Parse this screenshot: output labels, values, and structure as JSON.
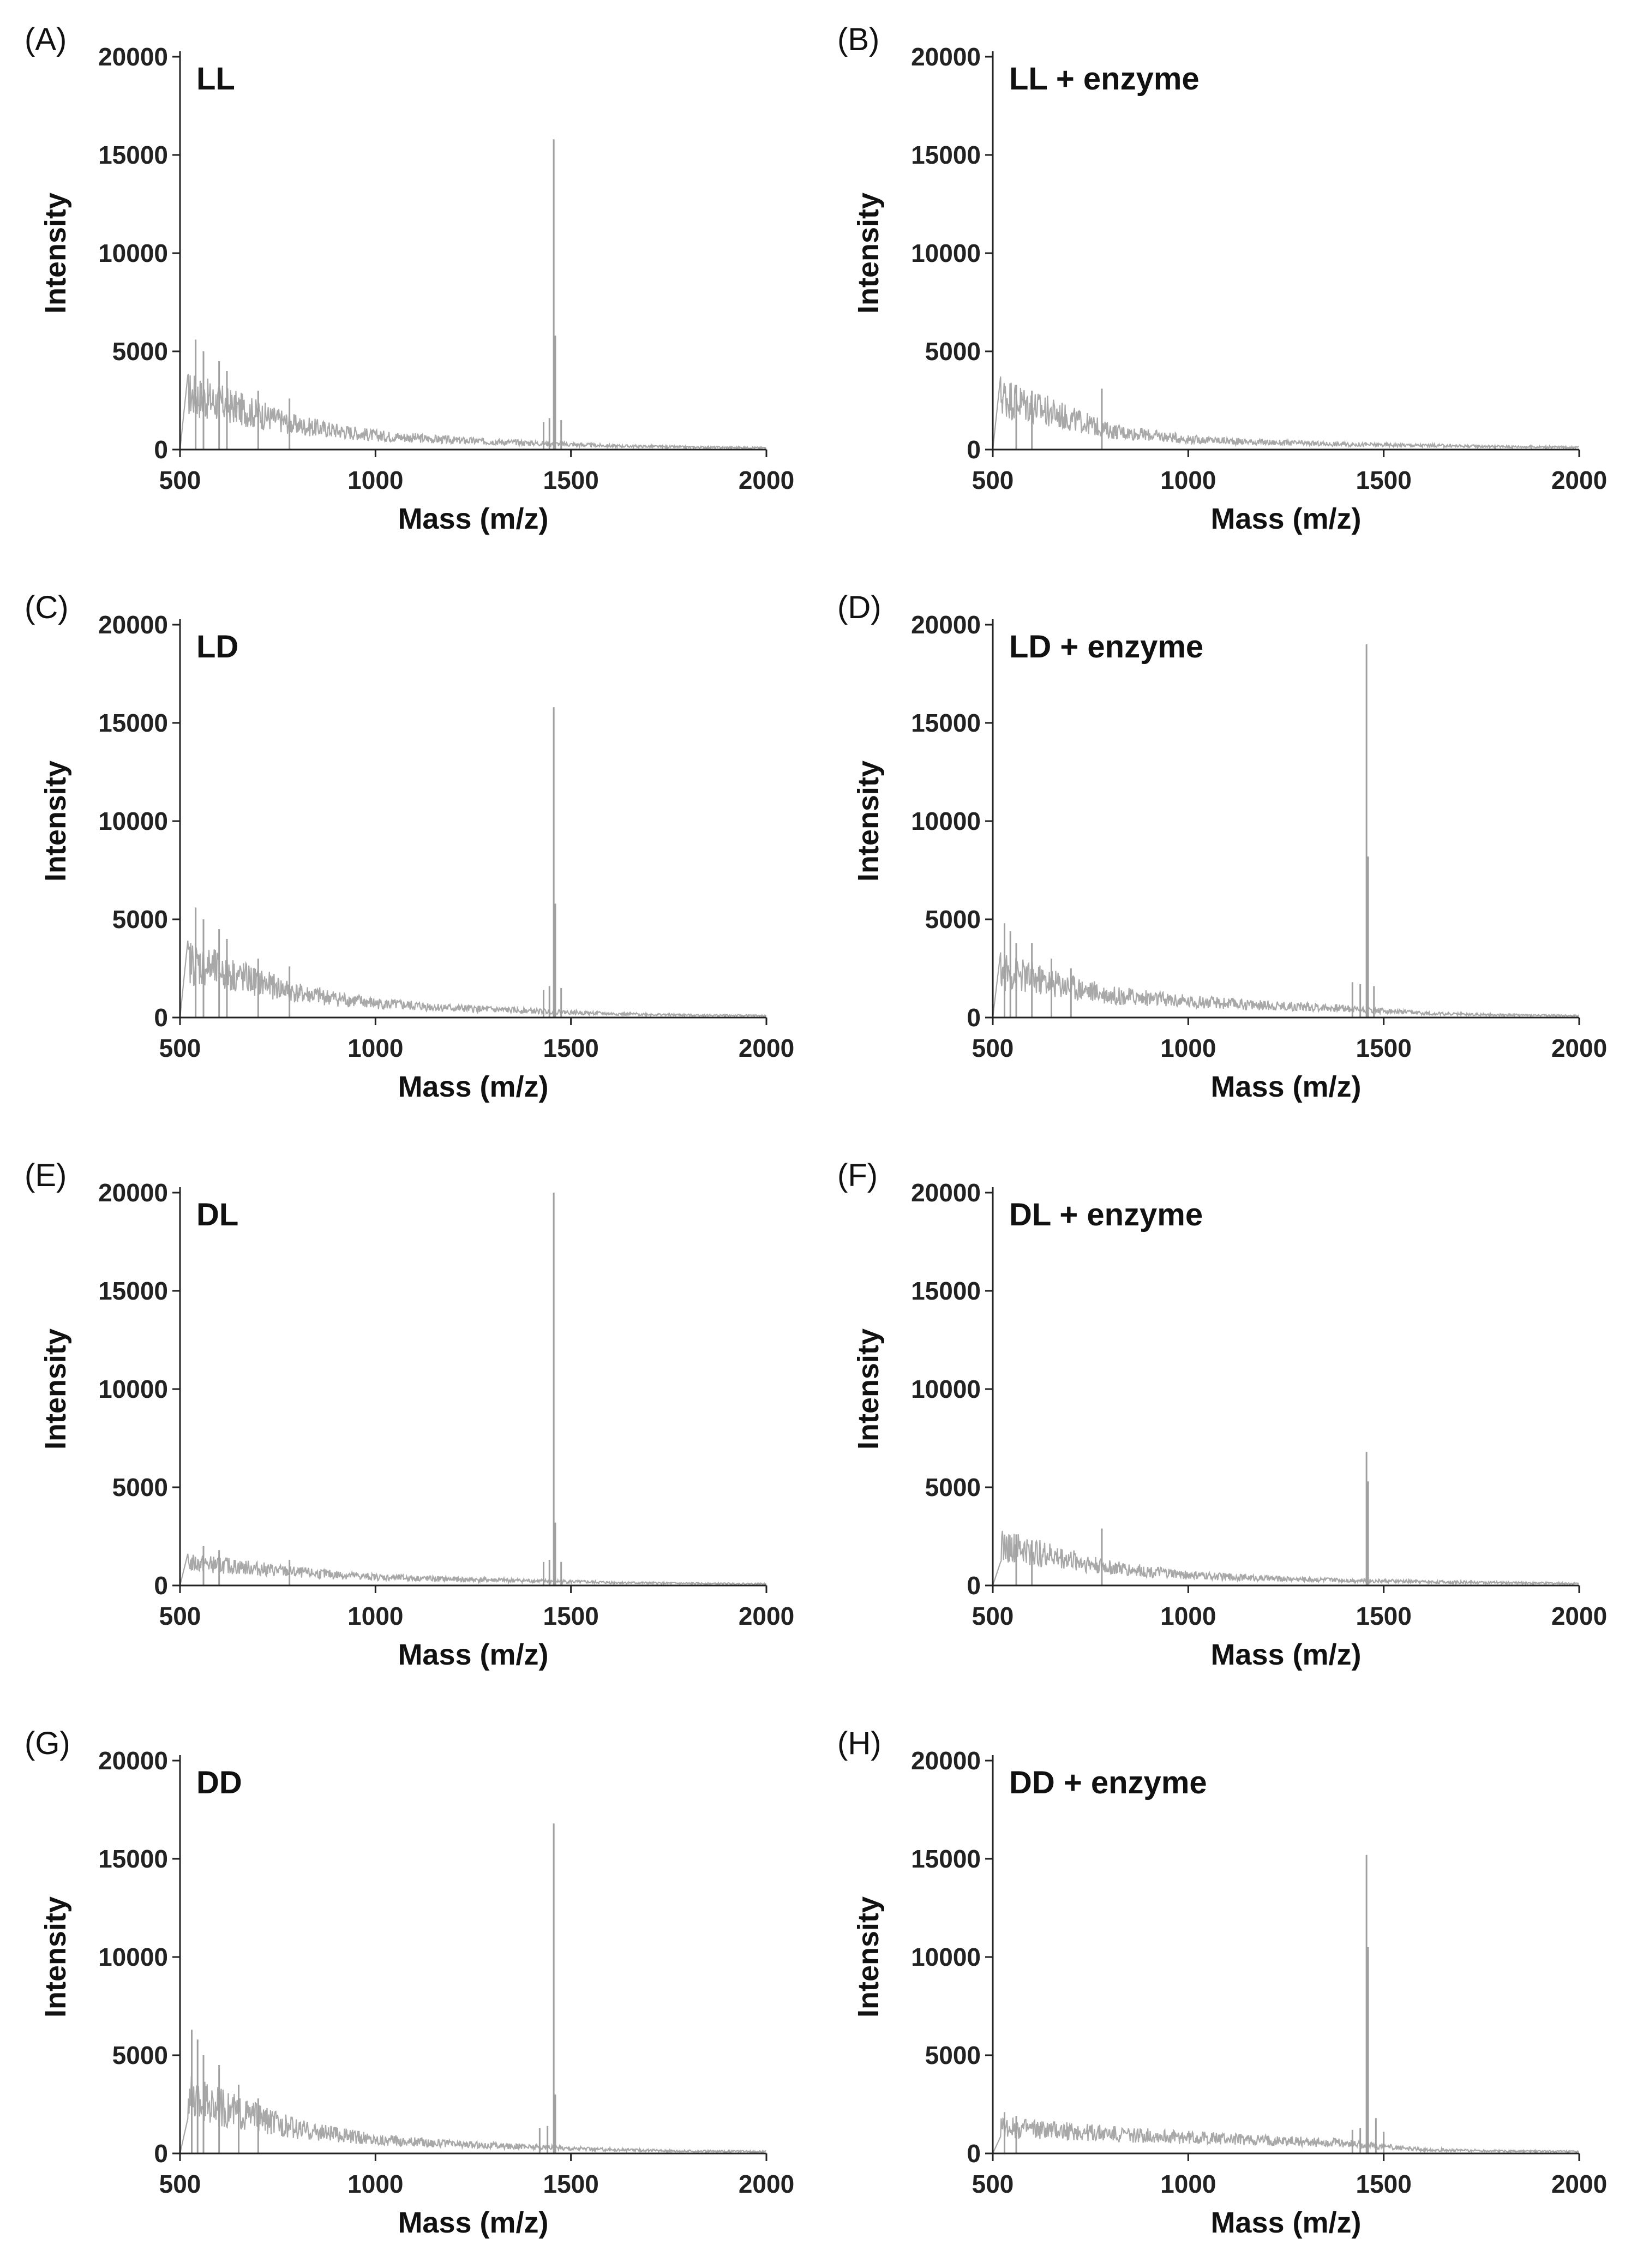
{
  "chart_data": [
    {
      "type": "line",
      "panel": "(A)",
      "title": "LL",
      "xlabel": "Mass (m/z)",
      "ylabel": "Intensity",
      "xlim": [
        500,
        2000
      ],
      "ylim": [
        0,
        20000
      ],
      "xticks": [
        "500",
        "1000",
        "1500",
        "2000"
      ],
      "yticks": [
        "0",
        "5000",
        "10000",
        "15000",
        "20000"
      ],
      "series": [
        {
          "name": "LL",
          "baseline": [
            [
              520,
              3000
            ],
            [
              600,
              2500
            ],
            [
              800,
              1300
            ],
            [
              1000,
              750
            ],
            [
              1200,
              500
            ],
            [
              1400,
              350
            ],
            [
              1600,
              200
            ],
            [
              1800,
              130
            ],
            [
              2000,
              100
            ]
          ],
          "peaks": [
            [
              540,
              5600
            ],
            [
              560,
              5000
            ],
            [
              600,
              4500
            ],
            [
              620,
              4000
            ],
            [
              700,
              3000
            ],
            [
              780,
              2600
            ],
            [
              1430,
              1400
            ],
            [
              1445,
              1600
            ],
            [
              1456,
              15800
            ],
            [
              1460,
              5800
            ],
            [
              1475,
              1500
            ]
          ]
        }
      ]
    },
    {
      "type": "line",
      "panel": "(B)",
      "title": "LL + enzyme",
      "xlabel": "Mass (m/z)",
      "ylabel": "Intensity",
      "xlim": [
        500,
        2000
      ],
      "ylim": [
        0,
        20000
      ],
      "xticks": [
        "500",
        "1000",
        "1500",
        "2000"
      ],
      "yticks": [
        "0",
        "5000",
        "10000",
        "15000",
        "20000"
      ],
      "series": [
        {
          "name": "LL + enzyme",
          "baseline": [
            [
              520,
              2900
            ],
            [
              600,
              2300
            ],
            [
              800,
              1000
            ],
            [
              1000,
              550
            ],
            [
              1200,
              380
            ],
            [
              1400,
              280
            ],
            [
              1600,
              220
            ],
            [
              1800,
              160
            ],
            [
              2000,
              120
            ]
          ],
          "peaks": [
            [
              560,
              3300
            ],
            [
              600,
              3000
            ],
            [
              779,
              3100
            ]
          ]
        }
      ]
    },
    {
      "type": "line",
      "panel": "(C)",
      "title": "LD",
      "xlabel": "Mass (m/z)",
      "ylabel": "Intensity",
      "xlim": [
        500,
        2000
      ],
      "ylim": [
        0,
        20000
      ],
      "xticks": [
        "500",
        "1000",
        "1500",
        "2000"
      ],
      "yticks": [
        "0",
        "5000",
        "10000",
        "15000",
        "20000"
      ],
      "series": [
        {
          "name": "LD",
          "baseline": [
            [
              520,
              3000
            ],
            [
              600,
              2500
            ],
            [
              800,
              1300
            ],
            [
              1000,
              750
            ],
            [
              1200,
              500
            ],
            [
              1400,
              350
            ],
            [
              1600,
              200
            ],
            [
              1800,
              130
            ],
            [
              2000,
              100
            ]
          ],
          "peaks": [
            [
              540,
              5600
            ],
            [
              560,
              5000
            ],
            [
              600,
              4500
            ],
            [
              620,
              4000
            ],
            [
              700,
              3000
            ],
            [
              780,
              2600
            ],
            [
              1430,
              1400
            ],
            [
              1445,
              1600
            ],
            [
              1456,
              15800
            ],
            [
              1460,
              5800
            ],
            [
              1475,
              1500
            ]
          ]
        }
      ]
    },
    {
      "type": "line",
      "panel": "(D)",
      "title": "LD + enzyme",
      "xlabel": "Mass (m/z)",
      "ylabel": "Intensity",
      "xlim": [
        500,
        2000
      ],
      "ylim": [
        0,
        20000
      ],
      "xticks": [
        "500",
        "1000",
        "1500",
        "2000"
      ],
      "yticks": [
        "0",
        "5000",
        "10000",
        "15000",
        "20000"
      ],
      "series": [
        {
          "name": "LD + enzyme",
          "baseline": [
            [
              520,
              2500
            ],
            [
              600,
              2100
            ],
            [
              800,
              1200
            ],
            [
              1000,
              850
            ],
            [
              1200,
              650
            ],
            [
              1400,
              500
            ],
            [
              1600,
              220
            ],
            [
              1800,
              140
            ],
            [
              2000,
              100
            ]
          ],
          "peaks": [
            [
              530,
              4800
            ],
            [
              545,
              4400
            ],
            [
              560,
              3800
            ],
            [
              600,
              3800
            ],
            [
              650,
              3000
            ],
            [
              700,
              2500
            ],
            [
              1420,
              1800
            ],
            [
              1440,
              1700
            ],
            [
              1456,
              19000
            ],
            [
              1460,
              8200
            ],
            [
              1475,
              1600
            ]
          ]
        }
      ]
    },
    {
      "type": "line",
      "panel": "(E)",
      "title": "DL",
      "xlabel": "Mass (m/z)",
      "ylabel": "Intensity",
      "xlim": [
        500,
        2000
      ],
      "ylim": [
        0,
        20000
      ],
      "xticks": [
        "500",
        "1000",
        "1500",
        "2000"
      ],
      "yticks": [
        "0",
        "5000",
        "10000",
        "15000",
        "20000"
      ],
      "series": [
        {
          "name": "DL",
          "baseline": [
            [
              520,
              1200
            ],
            [
              600,
              1100
            ],
            [
              800,
              700
            ],
            [
              1000,
              450
            ],
            [
              1200,
              330
            ],
            [
              1400,
              250
            ],
            [
              1600,
              160
            ],
            [
              1800,
              110
            ],
            [
              2000,
              90
            ]
          ],
          "peaks": [
            [
              560,
              2000
            ],
            [
              600,
              1800
            ],
            [
              780,
              1300
            ],
            [
              1430,
              1200
            ],
            [
              1445,
              1300
            ],
            [
              1456,
              20000
            ],
            [
              1460,
              3200
            ],
            [
              1475,
              1200
            ]
          ]
        }
      ]
    },
    {
      "type": "line",
      "panel": "(F)",
      "title": "DL + enzyme",
      "xlabel": "Mass (m/z)",
      "ylabel": "Intensity",
      "xlim": [
        500,
        2000
      ],
      "ylim": [
        0,
        20000
      ],
      "xticks": [
        "500",
        "1000",
        "1500",
        "2000"
      ],
      "yticks": [
        "0",
        "5000",
        "10000",
        "15000",
        "20000"
      ],
      "series": [
        {
          "name": "DL + enzyme",
          "baseline": [
            [
              520,
              2100
            ],
            [
              600,
              1800
            ],
            [
              800,
              950
            ],
            [
              1000,
              550
            ],
            [
              1200,
              380
            ],
            [
              1400,
              280
            ],
            [
              1600,
              200
            ],
            [
              1800,
              150
            ],
            [
              2000,
              110
            ]
          ],
          "peaks": [
            [
              560,
              2600
            ],
            [
              600,
              2300
            ],
            [
              779,
              2900
            ],
            [
              1456,
              6800
            ],
            [
              1460,
              5300
            ]
          ]
        }
      ]
    },
    {
      "type": "line",
      "panel": "(G)",
      "title": "DD",
      "xlabel": "Mass (m/z)",
      "ylabel": "Intensity",
      "xlim": [
        500,
        2000
      ],
      "ylim": [
        0,
        20000
      ],
      "xticks": [
        "500",
        "1000",
        "1500",
        "2000"
      ],
      "yticks": [
        "0",
        "5000",
        "10000",
        "15000",
        "20000"
      ],
      "series": [
        {
          "name": "DD",
          "baseline": [
            [
              520,
              3000
            ],
            [
              600,
              2500
            ],
            [
              800,
              1300
            ],
            [
              1000,
              750
            ],
            [
              1200,
              500
            ],
            [
              1400,
              350
            ],
            [
              1600,
              200
            ],
            [
              1800,
              130
            ],
            [
              2000,
              100
            ]
          ],
          "peaks": [
            [
              530,
              6300
            ],
            [
              545,
              5800
            ],
            [
              560,
              5000
            ],
            [
              600,
              4500
            ],
            [
              650,
              3500
            ],
            [
              700,
              2800
            ],
            [
              1420,
              1300
            ],
            [
              1440,
              1400
            ],
            [
              1456,
              16800
            ],
            [
              1460,
              3000
            ]
          ]
        }
      ]
    },
    {
      "type": "line",
      "panel": "(H)",
      "title": "DD + enzyme",
      "xlabel": "Mass (m/z)",
      "ylabel": "Intensity",
      "xlim": [
        500,
        2000
      ],
      "ylim": [
        0,
        20000
      ],
      "xticks": [
        "500",
        "1000",
        "1500",
        "2000"
      ],
      "yticks": [
        "0",
        "5000",
        "10000",
        "15000",
        "20000"
      ],
      "series": [
        {
          "name": "DD + enzyme",
          "baseline": [
            [
              520,
              1400
            ],
            [
              600,
              1300
            ],
            [
              800,
              1050
            ],
            [
              1000,
              850
            ],
            [
              1200,
              700
            ],
            [
              1400,
              550
            ],
            [
              1600,
              200
            ],
            [
              1800,
              130
            ],
            [
              2000,
              100
            ]
          ],
          "peaks": [
            [
              530,
              2100
            ],
            [
              560,
              1900
            ],
            [
              1420,
              1200
            ],
            [
              1440,
              1300
            ],
            [
              1456,
              15200
            ],
            [
              1460,
              10500
            ],
            [
              1480,
              1800
            ],
            [
              1500,
              1100
            ]
          ]
        }
      ]
    }
  ]
}
